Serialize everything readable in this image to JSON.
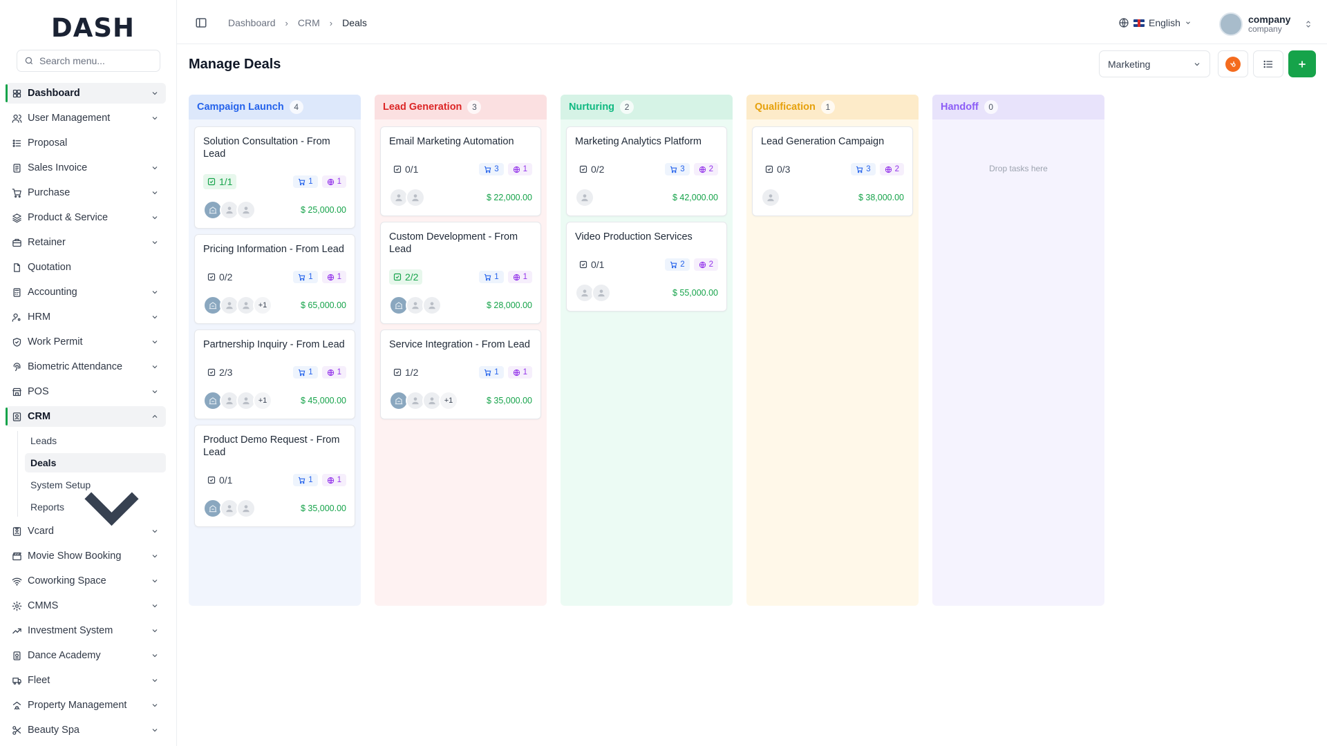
{
  "brand": {
    "logo_text": "DASH"
  },
  "search": {
    "placeholder": "Search menu..."
  },
  "sidebar": {
    "items": [
      {
        "label": "Dashboard",
        "icon": "grid-icon",
        "chevron": "down",
        "active": true
      },
      {
        "label": "User Management",
        "icon": "users-icon",
        "chevron": "down"
      },
      {
        "label": "Proposal",
        "icon": "proposal-icon",
        "chevron": ""
      },
      {
        "label": "Sales Invoice",
        "icon": "invoice-icon",
        "chevron": "down"
      },
      {
        "label": "Purchase",
        "icon": "cart-icon",
        "chevron": "down"
      },
      {
        "label": "Product & Service",
        "icon": "layers-icon",
        "chevron": "down"
      },
      {
        "label": "Retainer",
        "icon": "briefcase-icon",
        "chevron": "down"
      },
      {
        "label": "Quotation",
        "icon": "file-icon",
        "chevron": ""
      },
      {
        "label": "Accounting",
        "icon": "calculator-icon",
        "chevron": "down"
      },
      {
        "label": "HRM",
        "icon": "user-cog-icon",
        "chevron": "down"
      },
      {
        "label": "Work Permit",
        "icon": "shield-icon",
        "chevron": "down"
      },
      {
        "label": "Biometric Attendance",
        "icon": "fingerprint-icon",
        "chevron": "down"
      },
      {
        "label": "POS",
        "icon": "store-icon",
        "chevron": "down"
      },
      {
        "label": "CRM",
        "icon": "contact-icon",
        "chevron": "up",
        "active": true
      }
    ],
    "crm_sub": [
      {
        "label": "Leads",
        "active": false,
        "chevron": ""
      },
      {
        "label": "Deals",
        "active": true,
        "chevron": ""
      },
      {
        "label": "System Setup",
        "active": false,
        "chevron": ""
      },
      {
        "label": "Reports",
        "active": false,
        "chevron": "down"
      }
    ],
    "items_after": [
      {
        "label": "Vcard",
        "icon": "vcard-icon",
        "chevron": "down"
      },
      {
        "label": "Movie Show Booking",
        "icon": "clapper-icon",
        "chevron": "down"
      },
      {
        "label": "Coworking Space",
        "icon": "wifi-icon",
        "chevron": "down"
      },
      {
        "label": "CMMS",
        "icon": "cog-icon",
        "chevron": "down"
      },
      {
        "label": "Investment System",
        "icon": "trend-icon",
        "chevron": "down"
      },
      {
        "label": "Dance Academy",
        "icon": "academy-icon",
        "chevron": "down"
      },
      {
        "label": "Fleet",
        "icon": "truck-icon",
        "chevron": "down"
      },
      {
        "label": "Property Management",
        "icon": "property-icon",
        "chevron": "down"
      },
      {
        "label": "Beauty Spa",
        "icon": "scissors-icon",
        "chevron": "down"
      }
    ]
  },
  "breadcrumb": {
    "items": [
      "Dashboard",
      "CRM",
      "Deals"
    ]
  },
  "language": {
    "label": "English"
  },
  "user": {
    "name": "company",
    "role": "company"
  },
  "page": {
    "title": "Manage Deals",
    "pipeline": "Marketing"
  },
  "colors": {
    "accent": "#16a34a",
    "hubspot": "#f46b1e"
  },
  "columns": [
    {
      "title": "Campaign Launch",
      "count": "4",
      "header_bg": "#dde8fb",
      "body_bg": "#f1f5fd",
      "title_color": "#2563eb",
      "cards": [
        {
          "title": "Solution Consultation - From Lead",
          "tasks": "1/1",
          "done": true,
          "products": "1",
          "sources": "1",
          "avatars": [
            "img",
            "u",
            "u"
          ],
          "more": "",
          "amount": "$ 25,000.00"
        },
        {
          "title": "Pricing Information - From Lead",
          "tasks": "0/2",
          "done": false,
          "products": "1",
          "sources": "1",
          "avatars": [
            "img",
            "u",
            "u"
          ],
          "more": "+1",
          "amount": "$ 65,000.00"
        },
        {
          "title": "Partnership Inquiry - From Lead",
          "tasks": "2/3",
          "done": false,
          "products": "1",
          "sources": "1",
          "avatars": [
            "img",
            "u",
            "u"
          ],
          "more": "+1",
          "amount": "$ 45,000.00"
        },
        {
          "title": "Product Demo Request - From Lead",
          "tasks": "0/1",
          "done": false,
          "products": "1",
          "sources": "1",
          "avatars": [
            "img",
            "u",
            "u"
          ],
          "more": "",
          "amount": "$ 35,000.00",
          "two": true
        }
      ]
    },
    {
      "title": "Lead Generation",
      "count": "3",
      "header_bg": "#fbe0e1",
      "body_bg": "#fef2f2",
      "title_color": "#dc2626",
      "cards": [
        {
          "title": "Email Marketing Automation",
          "tasks": "0/1",
          "done": false,
          "products": "3",
          "sources": "1",
          "avatars": [
            "u",
            "u"
          ],
          "more": "",
          "amount": "$ 22,000.00"
        },
        {
          "title": "Custom Development - From Lead",
          "tasks": "2/2",
          "done": true,
          "products": "1",
          "sources": "1",
          "avatars": [
            "img",
            "u",
            "u"
          ],
          "more": "",
          "amount": "$ 28,000.00"
        },
        {
          "title": "Service Integration - From Lead",
          "tasks": "1/2",
          "done": false,
          "products": "1",
          "sources": "1",
          "avatars": [
            "img",
            "u",
            "u"
          ],
          "more": "+1",
          "amount": "$ 35,000.00"
        }
      ]
    },
    {
      "title": "Nurturing",
      "count": "2",
      "header_bg": "#d6f3e6",
      "body_bg": "#ecfbf4",
      "title_color": "#10b981",
      "cards": [
        {
          "title": "Marketing Analytics Platform",
          "tasks": "0/2",
          "done": false,
          "products": "3",
          "sources": "2",
          "avatars": [
            "u"
          ],
          "more": "",
          "amount": "$ 42,000.00"
        },
        {
          "title": "Video Production Services",
          "tasks": "0/1",
          "done": false,
          "products": "2",
          "sources": "2",
          "avatars": [
            "u",
            "u"
          ],
          "more": "",
          "amount": "$ 55,000.00"
        }
      ]
    },
    {
      "title": "Qualification",
      "count": "1",
      "header_bg": "#fdebc9",
      "body_bg": "#fff8e9",
      "title_color": "#e6a10c",
      "cards": [
        {
          "title": "Lead Generation Campaign",
          "tasks": "0/3",
          "done": false,
          "products": "3",
          "sources": "2",
          "avatars": [
            "u"
          ],
          "more": "",
          "amount": "$ 38,000.00"
        }
      ]
    },
    {
      "title": "Handoff",
      "count": "0",
      "header_bg": "#e8e3fb",
      "body_bg": "#f5f3fe",
      "title_color": "#8b5cf6",
      "empty_text": "Drop tasks here",
      "cards": []
    }
  ]
}
